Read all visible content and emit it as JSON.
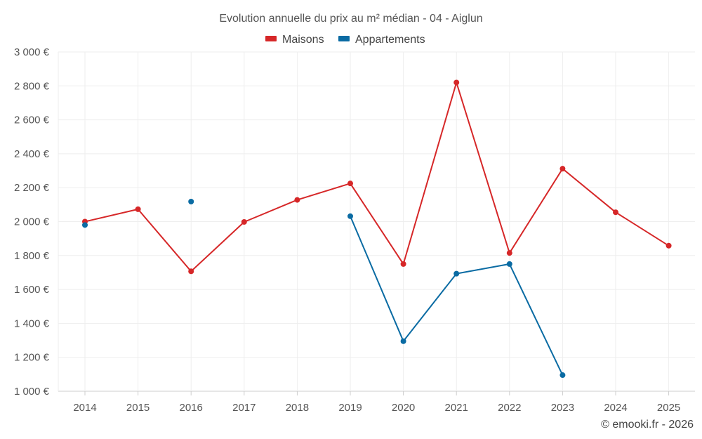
{
  "chart_data": {
    "type": "line",
    "title": "Evolution annuelle du prix au m² médian - 04 - Aiglun",
    "categories": [
      "2014",
      "2015",
      "2016",
      "2017",
      "2018",
      "2019",
      "2020",
      "2021",
      "2022",
      "2023",
      "2024",
      "2025"
    ],
    "series": [
      {
        "name": "Maisons",
        "color": "#d62728",
        "values": [
          2000,
          2073,
          1707,
          1998,
          2128,
          2225,
          1750,
          2820,
          1815,
          2312,
          2055,
          1858
        ]
      },
      {
        "name": "Appartements",
        "color": "#0a6ba3",
        "values": [
          1980,
          null,
          2118,
          null,
          null,
          2032,
          1295,
          1693,
          1750,
          1095,
          null,
          null
        ]
      }
    ],
    "ylim": [
      1000,
      3000
    ],
    "yticks": [
      1000,
      1200,
      1400,
      1600,
      1800,
      2000,
      2200,
      2400,
      2600,
      2800,
      3000
    ],
    "ytick_labels": [
      "1 000 €",
      "1 200 €",
      "1 400 €",
      "1 600 €",
      "1 800 €",
      "2 000 €",
      "2 200 €",
      "2 400 €",
      "2 600 €",
      "2 800 €",
      "3 000 €"
    ],
    "xlabel": "",
    "ylabel": "",
    "grid": true,
    "legend_position": "top-center"
  },
  "credit": "© emooki.fr - 2026"
}
